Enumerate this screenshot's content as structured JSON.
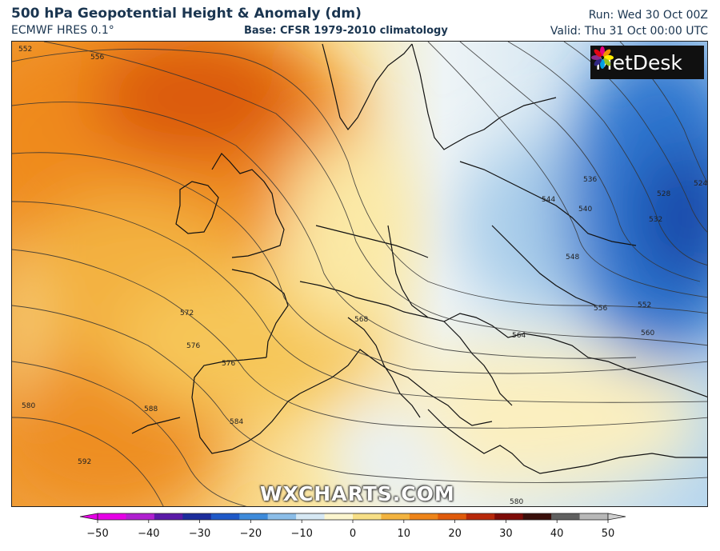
{
  "header": {
    "title": "500 hPa Geopotential Height & Anomaly (dm)",
    "model": "ECMWF HRES 0.1°",
    "base": "Base: CFSR 1979-2010 climatology",
    "run": "Run: Wed 30 Oct 00Z",
    "valid": "Valid: Thu 31 Oct 00:00 UTC"
  },
  "logo": {
    "text": "MetDesk",
    "icon": "metdesk-flower-icon"
  },
  "watermark": "WXCHARTS.COM",
  "contour_labels": [
    "552",
    "556",
    "572",
    "576",
    "580",
    "588",
    "592",
    "584",
    "568",
    "564",
    "560",
    "556",
    "552",
    "548",
    "544",
    "540",
    "536",
    "532",
    "528",
    "524",
    "580",
    "576"
  ],
  "colorbar": {
    "ticks": [
      "−50",
      "−40",
      "−30",
      "−20",
      "−10",
      "0",
      "10",
      "20",
      "30",
      "40",
      "50"
    ],
    "min": -50,
    "max": 50,
    "colors": [
      "#e600e6",
      "#b020d0",
      "#5a1aa8",
      "#1c2c9c",
      "#1f59c8",
      "#3e8bdb",
      "#8bbde8",
      "#d6e8f4",
      "#fcf6cf",
      "#f7df86",
      "#f3b33f",
      "#ee8419",
      "#e05a0b",
      "#b8280a",
      "#7e0b08",
      "#3a0e0a",
      "#606060",
      "#b8b8b8"
    ]
  }
}
